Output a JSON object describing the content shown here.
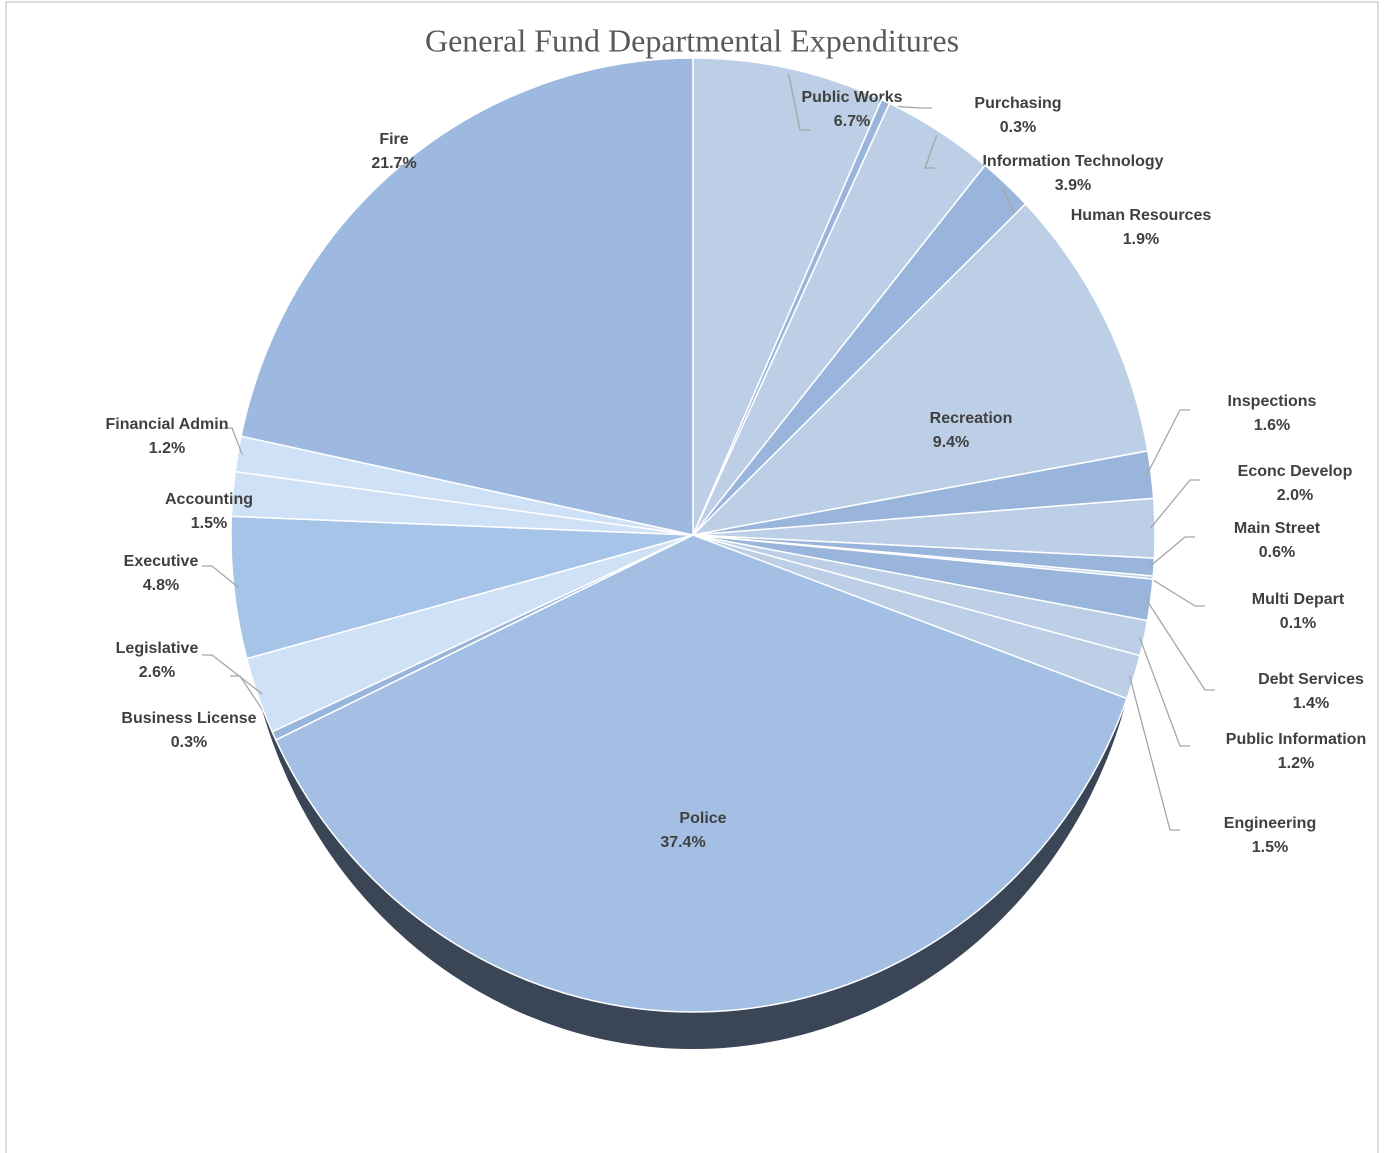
{
  "chart_data": {
    "type": "pie",
    "title": "General Fund Departmental Expenditures",
    "labels": [
      "Public Works",
      "Purchasing",
      "Information Technology",
      "Human Resources",
      "Recreation",
      "Inspections",
      "Econc Develop",
      "Main Street",
      "Multi Depart",
      "Debt Services",
      "Public Information",
      "Engineering",
      "Police",
      "Business License",
      "Legislative",
      "Executive",
      "Accounting",
      "Financial Admin",
      "Fire"
    ],
    "values": [
      6.7,
      0.3,
      3.9,
      1.9,
      9.4,
      1.6,
      2.0,
      0.6,
      0.1,
      1.4,
      1.2,
      1.5,
      37.4,
      0.3,
      2.6,
      4.8,
      1.5,
      1.2,
      21.7
    ],
    "value_labels": [
      "6.7%",
      "0.3%",
      "3.9%",
      "1.9%",
      "9.4%",
      "1.6%",
      "2.0%",
      "0.6%",
      "0.1%",
      "1.4%",
      "1.2%",
      "1.5%",
      "37.4%",
      "0.3%",
      "2.6%",
      "4.8%",
      "1.5%",
      "1.2%",
      "21.7%"
    ],
    "colors": [
      "#bccfe6",
      "#9ab5db",
      "#bccfe6",
      "#9ab5db",
      "#bccfe6",
      "#9ab5db",
      "#bccfe6",
      "#9ab5db",
      "#bccfe6",
      "#9ab5db",
      "#bccfe6",
      "#bccfe6",
      "#a3bfe3",
      "#9ab5db",
      "#cfe1f7",
      "#a6c3e8",
      "#cfe1f7",
      "#cfe1f7",
      "#9db9df"
    ]
  }
}
